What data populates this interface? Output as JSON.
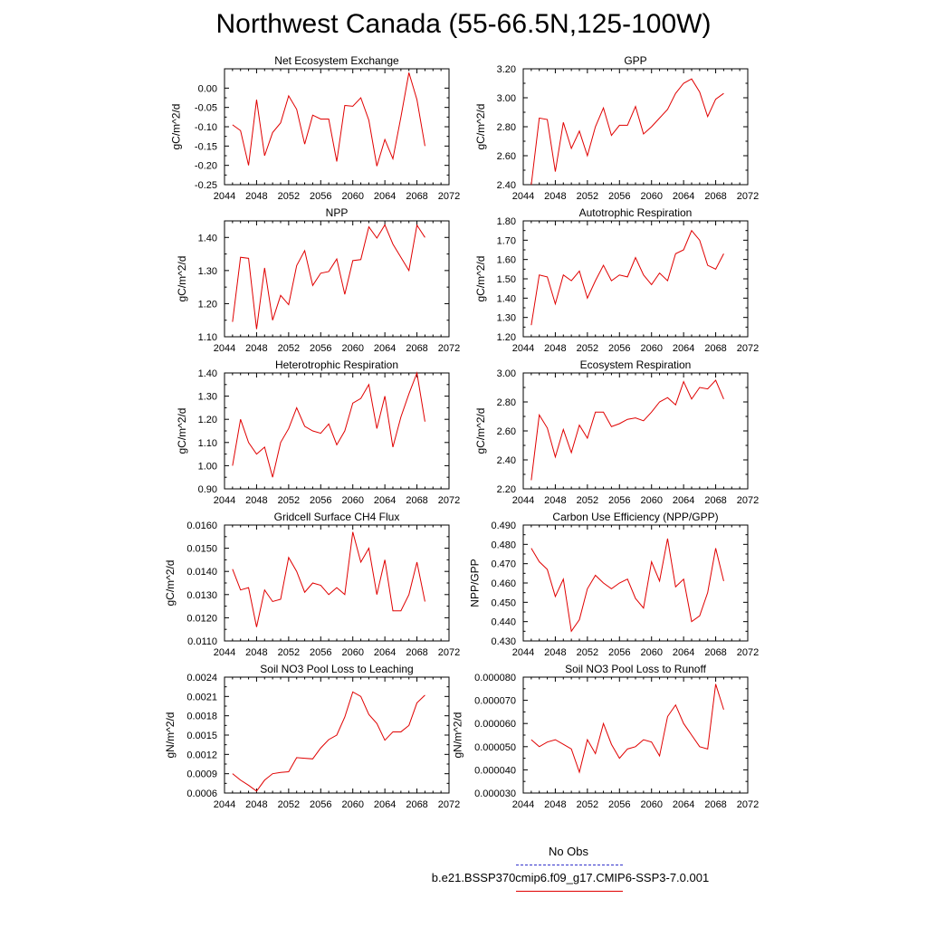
{
  "page": {
    "title": "Northwest Canada (55-66.5N,125-100W)",
    "line_color": "#e00000",
    "obs_color": "#3333cc"
  },
  "legend": {
    "obs_label": "No Obs",
    "model_label": "b.e21.BSSP370cmip6.f09_g17.CMIP6-SSP3-7.0.001"
  },
  "chart_data": [
    {
      "type": "line",
      "title": "Net Ecosystem Exchange",
      "ylabel": "gC/m^2/d",
      "xlim": [
        2044,
        2072
      ],
      "ylim": [
        -0.25,
        0.05
      ],
      "xticks": [
        2044,
        2048,
        2052,
        2056,
        2060,
        2064,
        2068,
        2072
      ],
      "yticks": [
        -0.25,
        -0.2,
        -0.15,
        -0.1,
        -0.05,
        0.0
      ],
      "ytick_labels": [
        "-0.25",
        "-0.20",
        "-0.15",
        "-0.10",
        "-0.05",
        "0.00"
      ],
      "x": [
        2045,
        2046,
        2047,
        2048,
        2049,
        2050,
        2051,
        2052,
        2053,
        2054,
        2055,
        2056,
        2057,
        2058,
        2059,
        2060,
        2061,
        2062,
        2063,
        2064,
        2065,
        2066,
        2067,
        2068,
        2069
      ],
      "y": [
        -0.095,
        -0.11,
        -0.2,
        -0.03,
        -0.175,
        -0.115,
        -0.09,
        -0.02,
        -0.055,
        -0.145,
        -0.07,
        -0.08,
        -0.08,
        -0.19,
        -0.045,
        -0.047,
        -0.025,
        -0.083,
        -0.202,
        -0.133,
        -0.183,
        -0.075,
        0.04,
        -0.03,
        -0.15
      ]
    },
    {
      "type": "line",
      "title": "GPP",
      "ylabel": "gC/m^2/d",
      "xlim": [
        2044,
        2072
      ],
      "ylim": [
        2.4,
        3.2
      ],
      "xticks": [
        2044,
        2048,
        2052,
        2056,
        2060,
        2064,
        2068,
        2072
      ],
      "yticks": [
        2.4,
        2.6,
        2.8,
        3.0,
        3.2
      ],
      "ytick_labels": [
        "2.40",
        "2.60",
        "2.80",
        "3.00",
        "3.20"
      ],
      "x": [
        2045,
        2046,
        2047,
        2048,
        2049,
        2050,
        2051,
        2052,
        2053,
        2054,
        2055,
        2056,
        2057,
        2058,
        2059,
        2060,
        2061,
        2062,
        2063,
        2064,
        2065,
        2066,
        2067,
        2068,
        2069
      ],
      "y": [
        2.4,
        2.86,
        2.85,
        2.49,
        2.83,
        2.65,
        2.77,
        2.6,
        2.8,
        2.93,
        2.74,
        2.81,
        2.81,
        2.94,
        2.75,
        2.8,
        2.86,
        2.92,
        3.03,
        3.1,
        3.13,
        3.04,
        2.87,
        2.99,
        3.03
      ]
    },
    {
      "type": "line",
      "title": "NPP",
      "ylabel": "gC/m^2/d",
      "xlim": [
        2044,
        2072
      ],
      "ylim": [
        1.1,
        1.45
      ],
      "xticks": [
        2044,
        2048,
        2052,
        2056,
        2060,
        2064,
        2068,
        2072
      ],
      "yticks": [
        1.1,
        1.2,
        1.3,
        1.4
      ],
      "ytick_labels": [
        "1.10",
        "1.20",
        "1.30",
        "1.40"
      ],
      "x": [
        2045,
        2046,
        2047,
        2048,
        2049,
        2050,
        2051,
        2052,
        2053,
        2054,
        2055,
        2056,
        2057,
        2058,
        2059,
        2060,
        2061,
        2062,
        2063,
        2064,
        2065,
        2066,
        2067,
        2068,
        2069
      ],
      "y": [
        1.145,
        1.34,
        1.337,
        1.123,
        1.308,
        1.15,
        1.225,
        1.197,
        1.315,
        1.36,
        1.255,
        1.292,
        1.297,
        1.335,
        1.228,
        1.33,
        1.333,
        1.432,
        1.398,
        1.438,
        1.38,
        1.34,
        1.3,
        1.437,
        1.4
      ]
    },
    {
      "type": "line",
      "title": "Autotrophic Respiration",
      "ylabel": "gC/m^2/d",
      "xlim": [
        2044,
        2072
      ],
      "ylim": [
        1.2,
        1.8
      ],
      "xticks": [
        2044,
        2048,
        2052,
        2056,
        2060,
        2064,
        2068,
        2072
      ],
      "yticks": [
        1.2,
        1.3,
        1.4,
        1.5,
        1.6,
        1.7,
        1.8
      ],
      "ytick_labels": [
        "1.20",
        "1.30",
        "1.40",
        "1.50",
        "1.60",
        "1.70",
        "1.80"
      ],
      "x": [
        2045,
        2046,
        2047,
        2048,
        2049,
        2050,
        2051,
        2052,
        2053,
        2054,
        2055,
        2056,
        2057,
        2058,
        2059,
        2060,
        2061,
        2062,
        2063,
        2064,
        2065,
        2066,
        2067,
        2068,
        2069
      ],
      "y": [
        1.26,
        1.52,
        1.51,
        1.37,
        1.52,
        1.49,
        1.54,
        1.4,
        1.49,
        1.57,
        1.49,
        1.52,
        1.51,
        1.61,
        1.52,
        1.47,
        1.53,
        1.49,
        1.63,
        1.65,
        1.75,
        1.7,
        1.57,
        1.55,
        1.63
      ]
    },
    {
      "type": "line",
      "title": "Heterotrophic Respiration",
      "ylabel": "gC/m^2/d",
      "xlim": [
        2044,
        2072
      ],
      "ylim": [
        0.9,
        1.4
      ],
      "xticks": [
        2044,
        2048,
        2052,
        2056,
        2060,
        2064,
        2068,
        2072
      ],
      "yticks": [
        0.9,
        1.0,
        1.1,
        1.2,
        1.3,
        1.4
      ],
      "ytick_labels": [
        "0.90",
        "1.00",
        "1.10",
        "1.20",
        "1.30",
        "1.40"
      ],
      "x": [
        2045,
        2046,
        2047,
        2048,
        2049,
        2050,
        2051,
        2052,
        2053,
        2054,
        2055,
        2056,
        2057,
        2058,
        2059,
        2060,
        2061,
        2062,
        2063,
        2064,
        2065,
        2066,
        2067,
        2068,
        2069
      ],
      "y": [
        1.0,
        1.2,
        1.1,
        1.05,
        1.08,
        0.95,
        1.1,
        1.16,
        1.25,
        1.17,
        1.15,
        1.14,
        1.18,
        1.09,
        1.15,
        1.27,
        1.29,
        1.35,
        1.16,
        1.3,
        1.08,
        1.21,
        1.31,
        1.4,
        1.19
      ]
    },
    {
      "type": "line",
      "title": "Ecosystem Respiration",
      "ylabel": "gC/m^2/d",
      "xlim": [
        2044,
        2072
      ],
      "ylim": [
        2.2,
        3.0
      ],
      "xticks": [
        2044,
        2048,
        2052,
        2056,
        2060,
        2064,
        2068,
        2072
      ],
      "yticks": [
        2.2,
        2.4,
        2.6,
        2.8,
        3.0
      ],
      "ytick_labels": [
        "2.20",
        "2.40",
        "2.60",
        "2.80",
        "3.00"
      ],
      "x": [
        2045,
        2046,
        2047,
        2048,
        2049,
        2050,
        2051,
        2052,
        2053,
        2054,
        2055,
        2056,
        2057,
        2058,
        2059,
        2060,
        2061,
        2062,
        2063,
        2064,
        2065,
        2066,
        2067,
        2068,
        2069
      ],
      "y": [
        2.26,
        2.71,
        2.62,
        2.42,
        2.61,
        2.45,
        2.64,
        2.55,
        2.73,
        2.73,
        2.63,
        2.65,
        2.68,
        2.69,
        2.67,
        2.73,
        2.8,
        2.83,
        2.78,
        2.94,
        2.82,
        2.9,
        2.89,
        2.95,
        2.82
      ]
    },
    {
      "type": "line",
      "title": "Gridcell Surface CH4 Flux",
      "ylabel": "gC/m^2/d",
      "xlim": [
        2044,
        2072
      ],
      "ylim": [
        0.011,
        0.016
      ],
      "xticks": [
        2044,
        2048,
        2052,
        2056,
        2060,
        2064,
        2068,
        2072
      ],
      "yticks": [
        0.011,
        0.012,
        0.013,
        0.014,
        0.015,
        0.016
      ],
      "ytick_labels": [
        "0.0110",
        "0.0120",
        "0.0130",
        "0.0140",
        "0.0150",
        "0.0160"
      ],
      "x": [
        2045,
        2046,
        2047,
        2048,
        2049,
        2050,
        2051,
        2052,
        2053,
        2054,
        2055,
        2056,
        2057,
        2058,
        2059,
        2060,
        2061,
        2062,
        2063,
        2064,
        2065,
        2066,
        2067,
        2068,
        2069
      ],
      "y": [
        0.0141,
        0.0132,
        0.0133,
        0.0116,
        0.0132,
        0.0127,
        0.0128,
        0.0146,
        0.014,
        0.0131,
        0.0135,
        0.0134,
        0.013,
        0.0133,
        0.013,
        0.0157,
        0.0144,
        0.015,
        0.013,
        0.0145,
        0.0123,
        0.0123,
        0.013,
        0.0144,
        0.0127
      ]
    },
    {
      "type": "line",
      "title": "Carbon Use Efficiency (NPP/GPP)",
      "ylabel": "NPP/GPP",
      "xlim": [
        2044,
        2072
      ],
      "ylim": [
        0.43,
        0.49
      ],
      "xticks": [
        2044,
        2048,
        2052,
        2056,
        2060,
        2064,
        2068,
        2072
      ],
      "yticks": [
        0.43,
        0.44,
        0.45,
        0.46,
        0.47,
        0.48,
        0.49
      ],
      "ytick_labels": [
        "0.430",
        "0.440",
        "0.450",
        "0.460",
        "0.470",
        "0.480",
        "0.490"
      ],
      "x": [
        2045,
        2046,
        2047,
        2048,
        2049,
        2050,
        2051,
        2052,
        2053,
        2054,
        2055,
        2056,
        2057,
        2058,
        2059,
        2060,
        2061,
        2062,
        2063,
        2064,
        2065,
        2066,
        2067,
        2068,
        2069
      ],
      "y": [
        0.478,
        0.471,
        0.467,
        0.453,
        0.462,
        0.435,
        0.441,
        0.457,
        0.464,
        0.46,
        0.457,
        0.46,
        0.462,
        0.452,
        0.447,
        0.471,
        0.461,
        0.483,
        0.458,
        0.462,
        0.44,
        0.443,
        0.455,
        0.478,
        0.461
      ]
    },
    {
      "type": "line",
      "title": "Soil NO3 Pool Loss to Leaching",
      "ylabel": "gN/m^2/d",
      "xlim": [
        2044,
        2072
      ],
      "ylim": [
        0.0006,
        0.0024
      ],
      "xticks": [
        2044,
        2048,
        2052,
        2056,
        2060,
        2064,
        2068,
        2072
      ],
      "yticks": [
        0.0006,
        0.0009,
        0.0012,
        0.0015,
        0.0018,
        0.0021,
        0.0024
      ],
      "ytick_labels": [
        "0.0006",
        "0.0009",
        "0.0012",
        "0.0015",
        "0.0018",
        "0.0021",
        "0.0024"
      ],
      "x": [
        2045,
        2046,
        2047,
        2048,
        2049,
        2050,
        2051,
        2052,
        2053,
        2054,
        2055,
        2056,
        2057,
        2058,
        2059,
        2060,
        2061,
        2062,
        2063,
        2064,
        2065,
        2066,
        2067,
        2068,
        2069
      ],
      "y": [
        0.0009,
        0.0008,
        0.00072,
        0.00063,
        0.0008,
        0.0009,
        0.00092,
        0.00093,
        0.00115,
        0.00114,
        0.00113,
        0.0013,
        0.00143,
        0.0015,
        0.00178,
        0.00217,
        0.0021,
        0.00182,
        0.00168,
        0.00142,
        0.00155,
        0.00155,
        0.00165,
        0.002,
        0.00212
      ]
    },
    {
      "type": "line",
      "title": "Soil NO3 Pool Loss to Runoff",
      "ylabel": "gN/m^2/d",
      "xlim": [
        2044,
        2072
      ],
      "ylim": [
        3e-05,
        8e-05
      ],
      "xticks": [
        2044,
        2048,
        2052,
        2056,
        2060,
        2064,
        2068,
        2072
      ],
      "yticks": [
        3e-05,
        4e-05,
        5e-05,
        6e-05,
        7e-05,
        8e-05
      ],
      "ytick_labels": [
        "0.000030",
        "0.000040",
        "0.000050",
        "0.000060",
        "0.000070",
        "0.000080"
      ],
      "x": [
        2045,
        2046,
        2047,
        2048,
        2049,
        2050,
        2051,
        2052,
        2053,
        2054,
        2055,
        2056,
        2057,
        2058,
        2059,
        2060,
        2061,
        2062,
        2063,
        2064,
        2065,
        2066,
        2067,
        2068,
        2069
      ],
      "y": [
        5.3e-05,
        5e-05,
        5.2e-05,
        5.3e-05,
        5.1e-05,
        4.9e-05,
        3.9e-05,
        5.3e-05,
        4.7e-05,
        6e-05,
        5.1e-05,
        4.5e-05,
        4.9e-05,
        5e-05,
        5.3e-05,
        5.2e-05,
        4.6e-05,
        6.3e-05,
        6.8e-05,
        6e-05,
        5.5e-05,
        5e-05,
        4.9e-05,
        7.7e-05,
        6.6e-05
      ]
    }
  ]
}
